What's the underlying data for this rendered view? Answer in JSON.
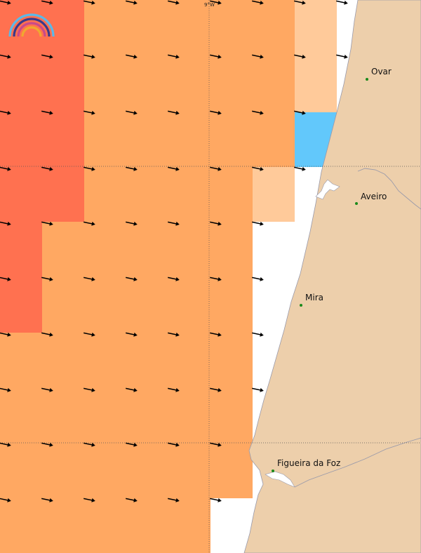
{
  "map": {
    "grid_label": "9°W",
    "colors": {
      "red": "#ff7150",
      "orange": "#ffa862",
      "peach": "#ffca9a",
      "blue": "#62c8fb",
      "land": "#edcfab",
      "coast": "#9a9aaa",
      "city_dot": "#1a8a1a"
    },
    "cities": [
      {
        "name": "Ovar"
      },
      {
        "name": "Aveiro"
      },
      {
        "name": "Mira"
      },
      {
        "name": "Figueira da Foz"
      }
    ],
    "wind_arrows": {
      "direction": "east-southeast",
      "icon": "wind-arrow-icon"
    },
    "logo": {
      "icon": "rainbow-logo-icon"
    }
  }
}
